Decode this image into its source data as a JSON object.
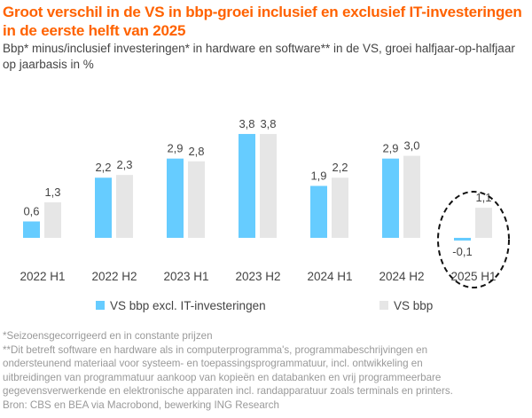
{
  "title": "Groot verschil in de VS in bbp-groei inclusief en exclusief IT-investeringen in de eerste helft van 2025",
  "subtitle": "Bbp* minus/inclusief investeringen* in hardware en software** in de VS, groei halfjaar-op-halfjaar op jaarbasis in %",
  "chart_data": {
    "type": "bar",
    "categories": [
      "2022 H1",
      "2022 H2",
      "2023 H1",
      "2023 H2",
      "2024 H1",
      "2024 H2",
      "2025 H1"
    ],
    "series": [
      {
        "name": "VS bbp excl. IT-investeringen",
        "color": "#66ccff",
        "values": [
          0.6,
          2.2,
          2.9,
          3.8,
          1.9,
          2.9,
          -0.1
        ],
        "labels": [
          "0,6",
          "2,2",
          "2,9",
          "3,8",
          "1,9",
          "2,9",
          "-0,1"
        ]
      },
      {
        "name": "VS bbp",
        "color": "#e6e6e6",
        "values": [
          1.3,
          2.3,
          2.8,
          3.8,
          2.2,
          3.0,
          1.1
        ],
        "labels": [
          "1,3",
          "2,3",
          "2,8",
          "3,8",
          "2,2",
          "3,0",
          "1,1"
        ]
      }
    ],
    "annotation": "dashed ellipse highlighting 2025 H1",
    "grid": false,
    "legend": "bottom"
  },
  "notes": [
    "*Seizoensgecorrigeerd en in constante prijzen",
    "**Dit betreft software en hardware als in computerprogramma's, programmabeschrijvingen en",
    "ondersteunend materiaal voor systeem- en toepassingsprogrammatuur, incl. ontwikkeling en",
    "uitbreidingen van programmatuur aankoop van kopieën en databanken en vrij programmeerbare",
    "gegevensverwerkende en elektronische apparaten incl. randapparatuur zoals terminals en printers.",
    "Bron: CBS en BEA via Macrobond, bewerking ING Research"
  ]
}
